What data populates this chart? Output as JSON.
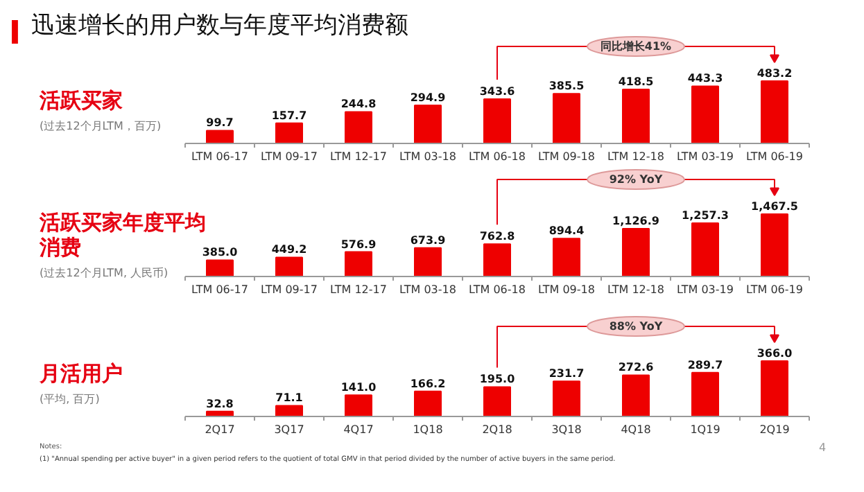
{
  "chart_data": [
    {
      "type": "bar",
      "title": "迅速增长的用户数与年度平均消费额",
      "ylabel": "活跃买家",
      "categories": [
        "LTM 06-17",
        "LTM 09-17",
        "LTM 12-17",
        "LTM 03-18",
        "LTM 06-18",
        "LTM 09-18",
        "LTM 12-18",
        "LTM 03-19",
        "LTM 06-19"
      ],
      "color": "#ee0000",
      "values": [
        99.7,
        157.7,
        244.8,
        294.9,
        343.6,
        385.5,
        418.5,
        443.3,
        483.2
      ],
      "value_labels": [
        "99.7",
        "157.7",
        "244.8",
        "294.9",
        "343.6",
        "385.5",
        "418.5",
        "443.3",
        "483.2"
      ],
      "annotations": [
        "(过去12个月LTM，百万)",
        "同比增长41%"
      ]
    },
    {
      "type": "bar",
      "ylabel": "活跃买家年度平均消费",
      "categories": [
        "LTM 06-17",
        "LTM 09-17",
        "LTM 12-17",
        "LTM 03-18",
        "LTM 06-18",
        "LTM 09-18",
        "LTM 12-18",
        "LTM 03-19",
        "LTM 06-19"
      ],
      "color": "#ee0000",
      "values": [
        385.0,
        449.2,
        576.9,
        673.9,
        762.8,
        894.4,
        1126.9,
        1257.3,
        1467.5
      ],
      "value_labels": [
        "385.0",
        "449.2",
        "576.9",
        "673.9",
        "762.8",
        "894.4",
        "1,126.9",
        "1,257.3",
        "1,467.5"
      ],
      "annotations": [
        "(过去12个月LTM, 人民币)",
        "92% YoY"
      ]
    },
    {
      "type": "bar",
      "ylabel": "月活用户",
      "categories": [
        "2Q17",
        "3Q17",
        "4Q17",
        "1Q18",
        "2Q18",
        "3Q18",
        "4Q18",
        "1Q19",
        "2Q19"
      ],
      "color": "#ee0000",
      "values": [
        32.8,
        71.1,
        141.0,
        166.2,
        195.0,
        231.7,
        272.6,
        289.7,
        366.0
      ],
      "value_labels": [
        "32.8",
        "71.1",
        "141.0",
        "166.2",
        "195.0",
        "231.7",
        "272.6",
        "289.7",
        "366.0"
      ],
      "annotations": [
        "(平均, 百万)",
        "88% YoY",
        "Notes:",
        "(1)      \"Annual spending per active buyer\" in a given period refers to the quotient of total GMV in that period divided by the number of active buyers in the same period.",
        "4"
      ]
    }
  ]
}
